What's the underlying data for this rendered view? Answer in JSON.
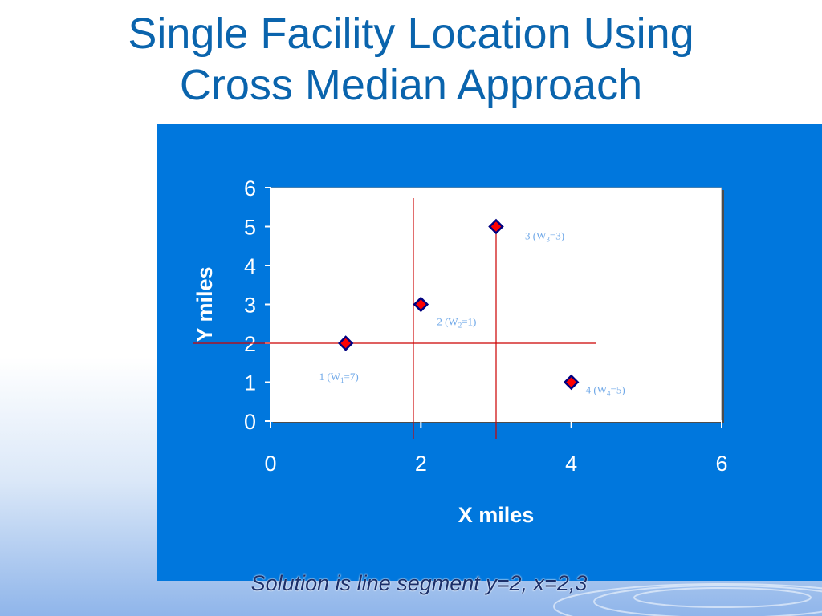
{
  "slide": {
    "title_line1": "Single Facility Location Using",
    "title_line2": "Cross Median Approach",
    "caption": "Solution is line segment y=2, x=2,3"
  },
  "colors": {
    "title": "#0a64ad",
    "panel": "#0077dd",
    "plot_bg": "#ffffff",
    "marker_fill": "#ff0000",
    "marker_stroke": "#000080",
    "median_line": "#cc0000",
    "point_label": "#6fa8e8",
    "axis_text": "#ffffff"
  },
  "chart_data": {
    "type": "scatter",
    "title": "",
    "xlabel": "X miles",
    "ylabel": "Y miles",
    "xlim": [
      0,
      6
    ],
    "ylim": [
      0,
      6
    ],
    "xticks": [
      0,
      2,
      4,
      6
    ],
    "yticks": [
      0,
      1,
      2,
      3,
      4,
      5,
      6
    ],
    "grid": false,
    "legend": "none",
    "points": [
      {
        "x": 1,
        "y": 2,
        "id": "1",
        "weight_label": "(W1=7)",
        "w_sub": "1",
        "w_val": "7"
      },
      {
        "x": 2,
        "y": 3,
        "id": "2",
        "weight_label": "(W2=1)",
        "w_sub": "2",
        "w_val": "1"
      },
      {
        "x": 3,
        "y": 5,
        "id": "3",
        "weight_label": "(W3=3)",
        "w_sub": "3",
        "w_val": "3"
      },
      {
        "x": 4,
        "y": 1,
        "id": "4",
        "weight_label": "(W4=5)",
        "w_sub": "4",
        "w_val": "5"
      }
    ],
    "median_lines": {
      "horizontal_y": 2,
      "vertical_x": [
        1.9,
        3
      ]
    }
  }
}
